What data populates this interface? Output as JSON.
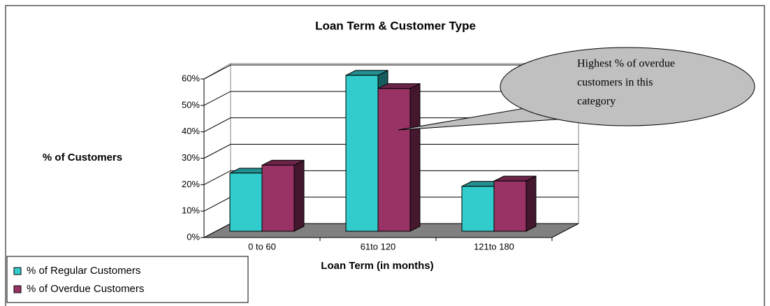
{
  "chart_data": {
    "type": "bar",
    "title": "Loan Term & Customer Type",
    "x_label": "Loan Term (in months)",
    "y_label": "% of Customers",
    "categories": [
      "0 to 60",
      "61to 120",
      "121to 180"
    ],
    "series": [
      {
        "name": "% of Regular Customers",
        "color": "#33cccc",
        "values": [
          22,
          59,
          17
        ]
      },
      {
        "name": "% of Overdue Customers",
        "color": "#993366",
        "values": [
          25,
          54,
          19
        ]
      }
    ],
    "ylim": [
      0,
      60
    ],
    "yticks": [
      {
        "value": 0,
        "label": "0%"
      },
      {
        "value": 10,
        "label": "10%"
      },
      {
        "value": 20,
        "label": "20%"
      },
      {
        "value": 30,
        "label": "30%"
      },
      {
        "value": 40,
        "label": "40%"
      },
      {
        "value": 50,
        "label": "50%"
      },
      {
        "value": 60,
        "label": "60%"
      }
    ],
    "grid": true,
    "legend": "bottom-left",
    "annotation": [
      "Highest % of overdue",
      "customers in this",
      "category"
    ]
  }
}
